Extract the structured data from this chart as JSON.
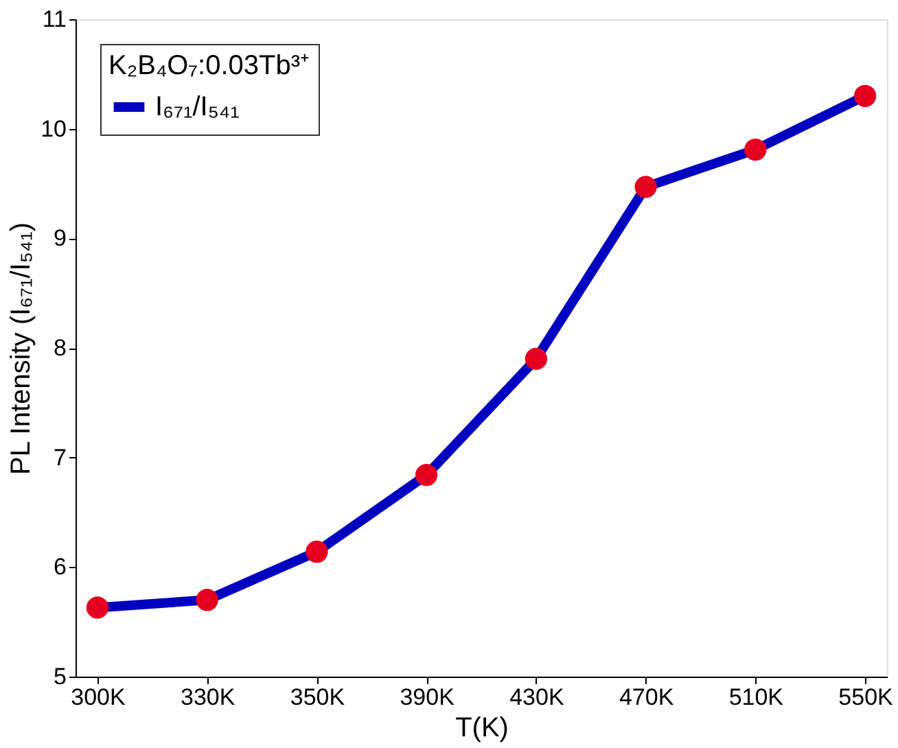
{
  "chart_data": {
    "type": "line",
    "xlabel": "T(K)",
    "ylabel": "PL Intensity (I₆₇₁/I₅₄₁)",
    "legend_title": "K₂B₄O₇:0.03Tb³⁺",
    "categories": [
      "300K",
      "330K",
      "350K",
      "390K",
      "430K",
      "470K",
      "510K",
      "550K"
    ],
    "series": [
      {
        "name": "I₆₇₁/I₅₄₁",
        "color": "#0000c0",
        "values": [
          5.63,
          5.7,
          6.14,
          6.84,
          7.9,
          9.47,
          9.81,
          10.3
        ]
      }
    ],
    "ylim": [
      5,
      11
    ],
    "yticks": [
      5,
      6,
      7,
      8,
      9,
      10,
      11
    ],
    "grid": false,
    "legend": "top left",
    "marker": "circle",
    "line_style": "solid"
  }
}
